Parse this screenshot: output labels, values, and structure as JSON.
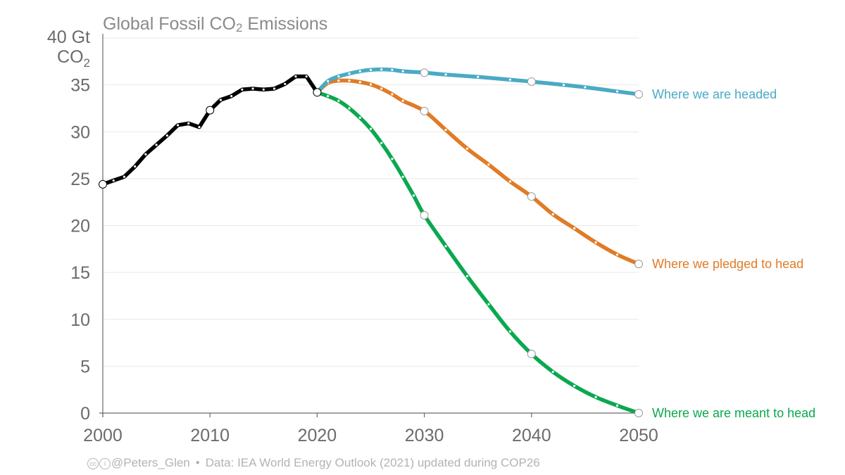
{
  "title": {
    "text": "Global Fossil CO",
    "sub": "2",
    "suffix": " Emissions"
  },
  "footer": {
    "handle": "@Peters_Glen",
    "separator": "•",
    "source": "Data: IEA World Energy Outlook (2021) updated during COP26"
  },
  "chart_data": {
    "type": "line",
    "xlim": [
      2000,
      2050
    ],
    "ylim": [
      0,
      40
    ],
    "x_ticks": [
      2000,
      2010,
      2020,
      2030,
      2040,
      2050
    ],
    "y_ticks": [
      0,
      5,
      10,
      15,
      20,
      25,
      30,
      35,
      40
    ],
    "ylabel": {
      "top": "40 Gt",
      "unit": "CO",
      "unit_sub": "2"
    },
    "grid": true,
    "series": [
      {
        "key": "historical",
        "color": "#000000",
        "x": [
          2000,
          2001,
          2002,
          2003,
          2004,
          2005,
          2006,
          2007,
          2008,
          2009,
          2010,
          2011,
          2012,
          2013,
          2014,
          2015,
          2016,
          2017,
          2018,
          2019,
          2020
        ],
        "y": [
          24.4,
          24.8,
          25.2,
          26.3,
          27.6,
          28.6,
          29.6,
          30.7,
          30.9,
          30.5,
          32.3,
          33.4,
          33.8,
          34.5,
          34.6,
          34.5,
          34.6,
          35.1,
          35.9,
          35.9,
          34.2
        ],
        "markers": [
          2000,
          2010,
          2020
        ]
      },
      {
        "key": "headed",
        "name": "Where we are headed",
        "color": "#4aaac5",
        "x": [
          2020,
          2021,
          2022,
          2023,
          2024,
          2025,
          2026,
          2027,
          2028,
          2030,
          2032,
          2035,
          2038,
          2040,
          2043,
          2045,
          2048,
          2050
        ],
        "y": [
          34.2,
          35.4,
          35.9,
          36.2,
          36.45,
          36.6,
          36.65,
          36.6,
          36.45,
          36.3,
          36.1,
          35.85,
          35.55,
          35.35,
          35.0,
          34.75,
          34.3,
          34.0
        ],
        "markers": [
          2030,
          2040,
          2050
        ]
      },
      {
        "key": "pledged",
        "name": "Where we pledged to head",
        "color": "#e07b26",
        "x": [
          2020,
          2021,
          2022,
          2023,
          2024,
          2025,
          2026,
          2027,
          2028,
          2030,
          2032,
          2034,
          2036,
          2038,
          2040,
          2042,
          2044,
          2046,
          2048,
          2050
        ],
        "y": [
          34.2,
          35.2,
          35.45,
          35.45,
          35.3,
          35.05,
          34.6,
          34.0,
          33.3,
          32.2,
          30.2,
          28.2,
          26.5,
          24.7,
          23.1,
          21.2,
          19.7,
          18.2,
          16.9,
          15.9
        ],
        "markers": [
          2030,
          2040,
          2050
        ]
      },
      {
        "key": "meant",
        "name": "Where we are meant to head",
        "color": "#0aa84f",
        "x": [
          2020,
          2021,
          2022,
          2023,
          2024,
          2025,
          2026,
          2027,
          2028,
          2029,
          2030,
          2032,
          2034,
          2036,
          2038,
          2040,
          2042,
          2044,
          2046,
          2048,
          2050
        ],
        "y": [
          34.2,
          33.8,
          33.3,
          32.5,
          31.5,
          30.3,
          28.8,
          27.1,
          25.2,
          23.2,
          21.1,
          17.8,
          14.6,
          11.6,
          8.7,
          6.3,
          4.4,
          2.9,
          1.7,
          0.8,
          0.0
        ],
        "markers": [
          2030,
          2040,
          2050
        ]
      }
    ]
  }
}
